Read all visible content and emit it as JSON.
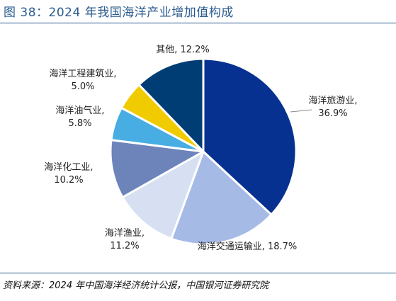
{
  "figure": {
    "title": "图 38：2024 年我国海洋产业增加值构成",
    "source": "资料来源：2024 年中国海洋经济统计公报，中国银河证券研究院"
  },
  "chart_data": {
    "type": "pie",
    "title": "",
    "categories": [
      "海洋旅游业",
      "海洋交通运输业",
      "海洋渔业",
      "海洋化工业",
      "海洋油气业",
      "海洋工程建筑业",
      "其他"
    ],
    "values": [
      36.9,
      18.7,
      11.2,
      10.2,
      5.8,
      5.0,
      12.2
    ],
    "unit": "%",
    "colors": [
      "#073190",
      "#a6bae6",
      "#d6e0f2",
      "#6d84bb",
      "#47ade3",
      "#f0cb00",
      "#003d74"
    ],
    "data_labels": [
      [
        "海洋旅游业,",
        "36.9%"
      ],
      [
        "海洋交通运输业, 18.7%"
      ],
      [
        "海洋渔业,",
        "11.2%"
      ],
      [
        "海洋化工业,",
        "10.2%"
      ],
      [
        "海洋油气业,",
        "5.8%"
      ],
      [
        "海洋工程建筑业,",
        "5.0%"
      ],
      [
        "其他, 12.2%"
      ]
    ],
    "start_angle_deg": 0,
    "direction": "clockwise",
    "legend": "none"
  }
}
